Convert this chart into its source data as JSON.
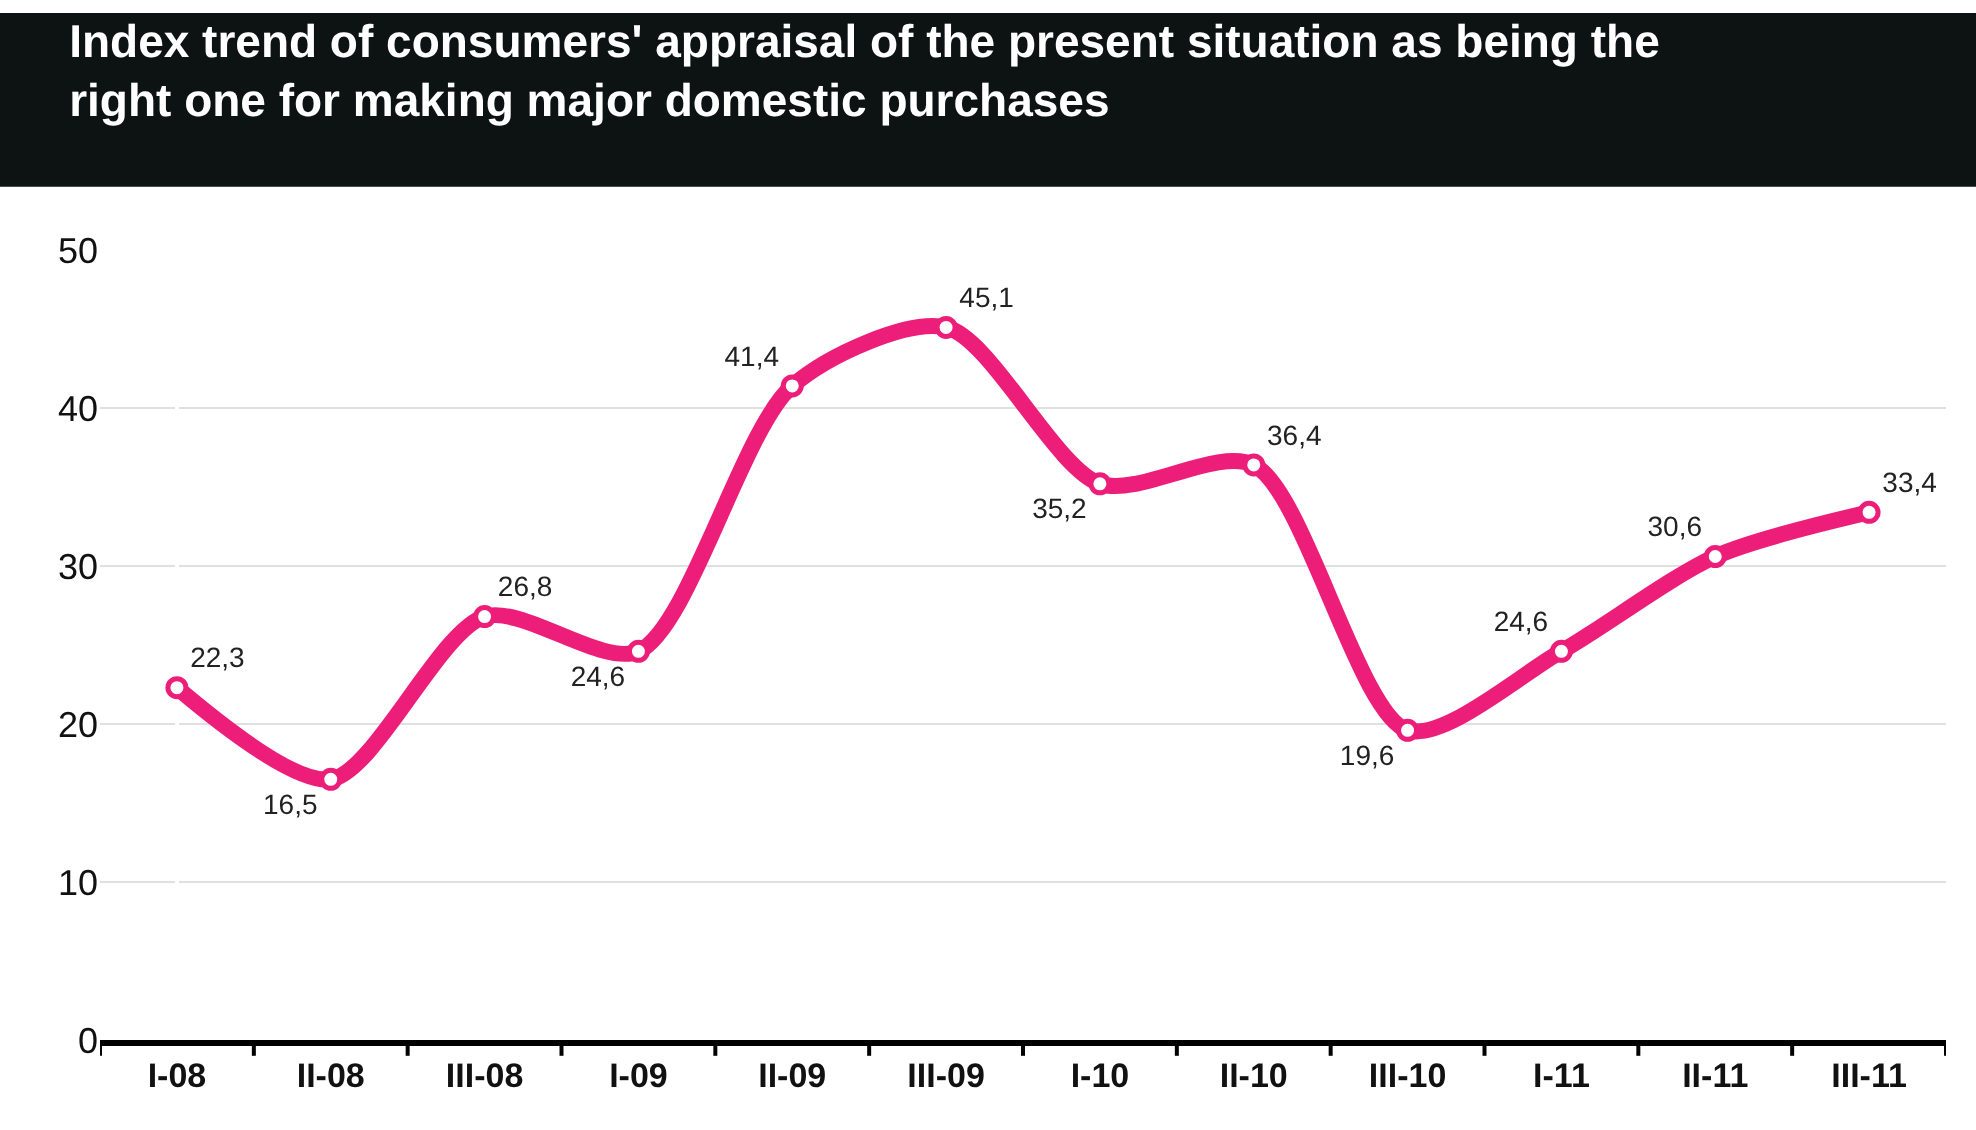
{
  "chart_data": {
    "type": "line",
    "title": "Index trend of consumers' appraisal of the present situation as being the right one for making major domestic purchases",
    "categories": [
      "I-08",
      "II-08",
      "III-08",
      "I-09",
      "II-09",
      "III-09",
      "I-10",
      "II-10",
      "III-10",
      "I-11",
      "II-11",
      "III-11"
    ],
    "series": [
      {
        "color": "#ec1e79",
        "values": [
          22.3,
          16.5,
          26.8,
          24.6,
          41.4,
          45.1,
          35.2,
          36.4,
          19.6,
          24.6,
          30.6,
          33.4
        ],
        "value_labels": [
          "22,3",
          "16,5",
          "26,8",
          "24,6",
          "41,4",
          "45,1",
          "35,2",
          "36,4",
          "19,6",
          "24,6",
          "30,6",
          "33,4"
        ]
      }
    ],
    "ylim": [
      0,
      50
    ],
    "yticks": [
      0,
      10,
      20,
      30,
      40,
      50
    ],
    "grid": "y",
    "marker": "circle",
    "line_style": "solid"
  }
}
